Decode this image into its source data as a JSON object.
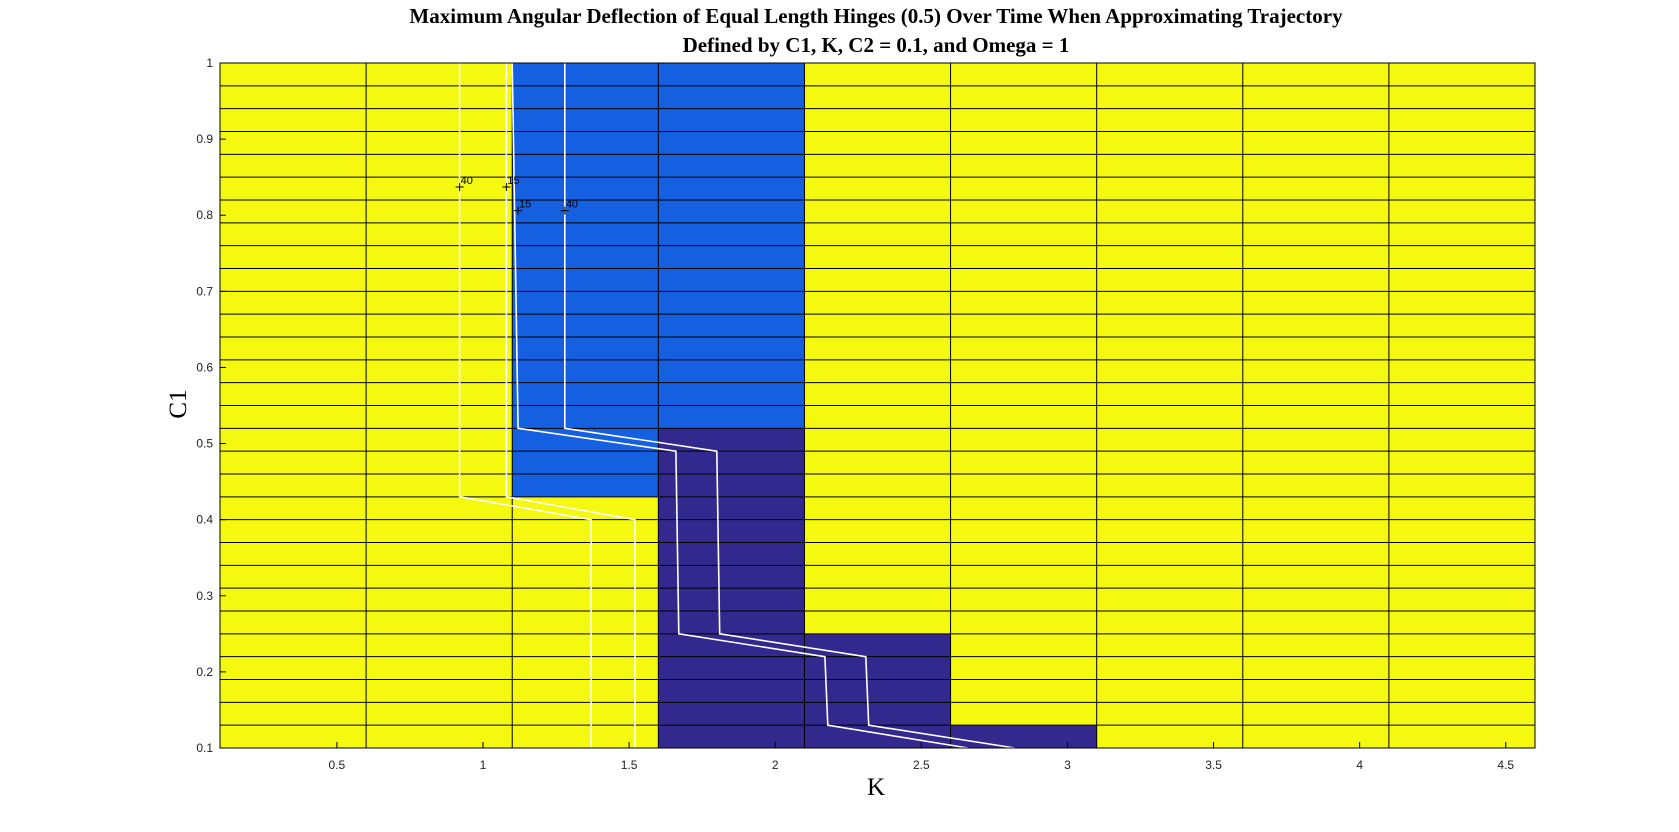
{
  "chart_data": {
    "type": "heatmap",
    "title_lines": [
      "Maximum Angular Deflection of Equal Length Hinges (0.5) Over Time When Approximating Trajectory",
      "Defined by C1, K, C2 = 0.1, and Omega = 1"
    ],
    "xlabel": "K",
    "ylabel": "C1",
    "xlim": [
      0.1,
      4.6
    ],
    "ylim": [
      0.1,
      1.0
    ],
    "xticks": [
      0.5,
      1,
      1.5,
      2,
      2.5,
      3,
      3.5,
      4,
      4.5
    ],
    "xtick_labels": [
      "0.5",
      "1",
      "1.5",
      "2",
      "2.5",
      "3",
      "3.5",
      "4",
      "4.5"
    ],
    "yticks": [
      0.1,
      0.2,
      0.3,
      0.4,
      0.5,
      0.6,
      0.7,
      0.8,
      0.9,
      1.0
    ],
    "ytick_labels": [
      "0.1",
      "0.2",
      "0.3",
      "0.4",
      "0.5",
      "0.6",
      "0.7",
      "0.8",
      "0.9",
      "1"
    ],
    "grid_x_edges": [
      0.1,
      0.6,
      1.1,
      1.6,
      2.1,
      2.6,
      3.1,
      3.6,
      4.1,
      4.6
    ],
    "grid_y_step": 0.03,
    "colors": {
      "yellow": "#f5f80f",
      "blue": "#1560e0",
      "navy": "#33288e",
      "gridline": "#000000",
      "contour": "#ffffff"
    },
    "regions": [
      {
        "color_key": "blue",
        "x": [
          1.1,
          1.6
        ],
        "y": [
          0.43,
          1.0
        ]
      },
      {
        "color_key": "blue",
        "x": [
          1.6,
          2.1
        ],
        "y": [
          0.52,
          1.0
        ]
      },
      {
        "color_key": "navy",
        "x": [
          1.6,
          2.1
        ],
        "y": [
          0.1,
          0.52
        ]
      },
      {
        "color_key": "navy",
        "x": [
          2.1,
          2.6
        ],
        "y": [
          0.1,
          0.25
        ]
      },
      {
        "color_key": "navy",
        "x": [
          2.6,
          3.1
        ],
        "y": [
          0.1,
          0.13
        ]
      }
    ],
    "contours": [
      {
        "points": [
          [
            0.92,
            1.0
          ],
          [
            0.92,
            0.43
          ],
          [
            1.37,
            0.4
          ],
          [
            1.37,
            0.1
          ]
        ]
      },
      {
        "points": [
          [
            1.08,
            1.0
          ],
          [
            1.08,
            0.43
          ],
          [
            1.52,
            0.4
          ],
          [
            1.52,
            0.1
          ]
        ]
      },
      {
        "points": [
          [
            1.1,
            1.0
          ],
          [
            1.12,
            0.52
          ],
          [
            1.66,
            0.49
          ],
          [
            1.67,
            0.25
          ],
          [
            2.17,
            0.22
          ],
          [
            2.18,
            0.13
          ],
          [
            2.66,
            0.1
          ]
        ]
      },
      {
        "points": [
          [
            1.28,
            1.0
          ],
          [
            1.28,
            0.52
          ],
          [
            1.8,
            0.49
          ],
          [
            1.81,
            0.25
          ],
          [
            2.31,
            0.22
          ],
          [
            2.32,
            0.13
          ],
          [
            2.82,
            0.1
          ]
        ]
      }
    ],
    "contour_labels": [
      {
        "text": "40",
        "x": 0.92,
        "y": 0.837
      },
      {
        "text": "15",
        "x": 1.08,
        "y": 0.837
      },
      {
        "text": "15",
        "x": 1.12,
        "y": 0.806
      },
      {
        "text": "40",
        "x": 1.28,
        "y": 0.806
      }
    ]
  }
}
